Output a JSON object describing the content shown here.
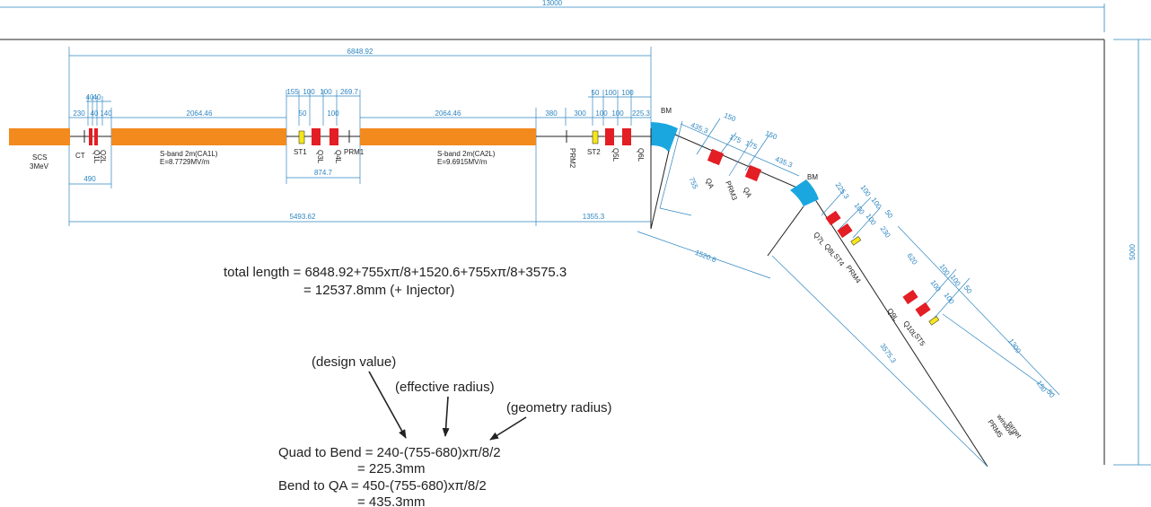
{
  "colors": {
    "accelerator": "#f28a1e",
    "magnet": "#e31e24",
    "steerer": "#f5e61a",
    "bend": "#1aa7e0",
    "dimension": "#2e86c1",
    "beamline": "#222222"
  },
  "dimensions": {
    "overall_width": "13000",
    "overall_height": "5000",
    "linac_length": "6848.92",
    "lower_span_1": "5493.62",
    "lower_span_2": "1355.3",
    "segment_490": "490",
    "segment_874": "874.7",
    "seg_230": "230",
    "seg_40a": "40",
    "seg_40b": "40",
    "seg_40c": "40",
    "seg_140": "140",
    "seg_2064_a": "2064.46",
    "seg_2064_b": "2064.46",
    "seg_155": "155",
    "seg_100a": "100",
    "seg_100b": "100",
    "seg_269": "269.7",
    "seg_50a": "50",
    "seg_100c": "100",
    "seg_380": "380",
    "seg_300": "300",
    "seg_50b": "50",
    "seg_100d": "100",
    "seg_100e": "100",
    "seg_100f": "100",
    "seg_100g": "100",
    "seg_225_a": "225.3",
    "arc_435_a": "435.3",
    "arc_150_a": "150",
    "arc_175_a": "175",
    "arc_175_b": "175",
    "arc_150_b": "150",
    "arc_435_b": "435.3",
    "arc_755": "755",
    "arc_1520": "1520.6",
    "d2_225": "225.3",
    "d2_100a": "100",
    "d2_100b": "100",
    "d2_100c": "100",
    "d2_50": "50",
    "d2_100d": "100",
    "d2_230": "230",
    "d2_620": "620",
    "d3_100a": "100",
    "d3_100b": "100",
    "d3_100c": "100",
    "d3_50": "50",
    "d3_100d": "100",
    "d3_1300": "1300",
    "d3_150": "150",
    "d3_50b": "50",
    "d3_3575": "3575.3"
  },
  "labels": {
    "scs": "SCS",
    "scs_energy": "3MeV",
    "ct": "CT",
    "q1l": "Q1L",
    "q2l": "Q2L",
    "ca1l": "S-band 2m(CA1L)",
    "ca1l_field": "E=8.7729MV/m",
    "st1": "ST1",
    "q3l": "Q3L",
    "q4l": "Q4L",
    "prm1": "PRM1",
    "ca2l": "S-band 2m(CA2L)",
    "ca2l_field": "E=9.6915MV/m",
    "prm2": "PRM2",
    "st2": "ST2",
    "q5l": "Q5L",
    "q6l": "Q6L",
    "bm1": "BM",
    "qa1": "QA",
    "prm3": "PRM3",
    "qa2": "QA",
    "bm2": "BM",
    "q7l": "Q7L",
    "q8l": "Q8L",
    "st4": "ST4",
    "prm4": "PRM4",
    "q9l": "Q9L",
    "q10l": "Q10L",
    "st5": "ST5",
    "prm5": "PRM5",
    "window": "window",
    "target": "target"
  },
  "notes": {
    "total_line1": "total length = 6848.92+755xπ/8+1520.6+755xπ/8+3575.3",
    "total_line2": "= 12537.8mm (+ Injector)",
    "design_value": "(design value)",
    "effective_radius": "(effective radius)",
    "geometry_radius": "(geometry radius)",
    "quad_line1": "Quad to Bend  = 240-(755-680)xπ/8/2",
    "quad_line2": "= 225.3mm",
    "bend_line1": "Bend to QA  = 450-(755-680)xπ/8/2",
    "bend_line2": "= 435.3mm"
  }
}
